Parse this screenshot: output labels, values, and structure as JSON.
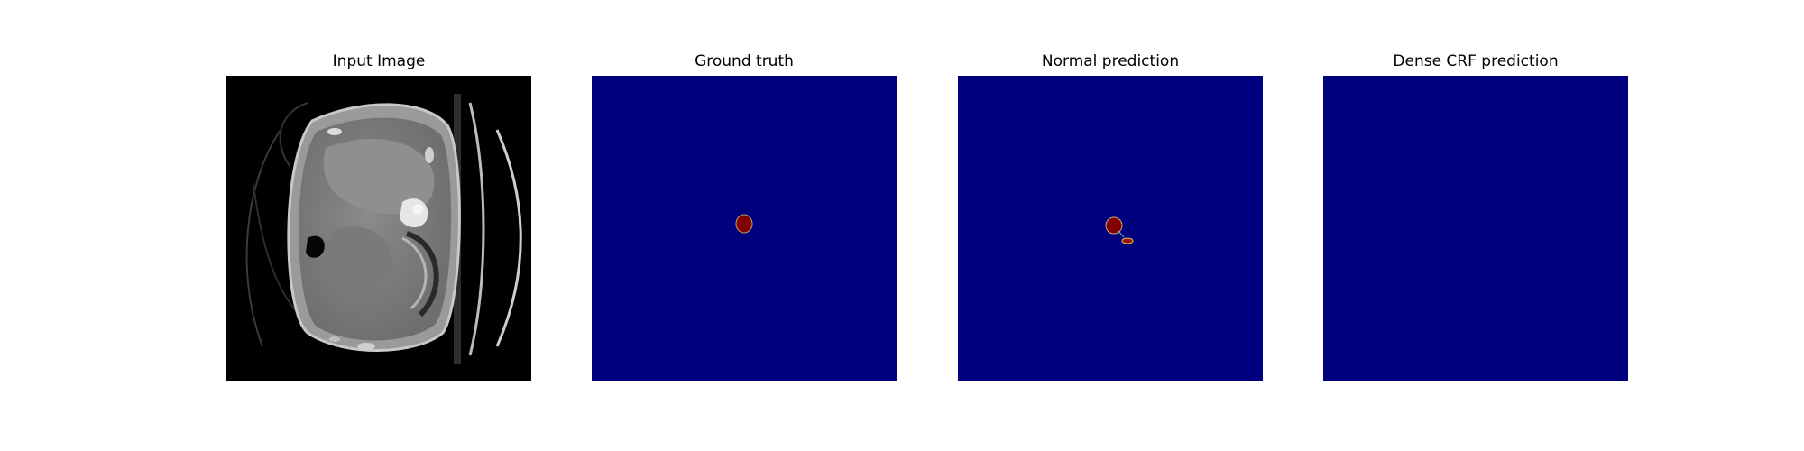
{
  "panels": [
    {
      "title": "Input Image"
    },
    {
      "title": "Ground truth"
    },
    {
      "title": "Normal prediction"
    },
    {
      "title": "Dense CRF prediction"
    }
  ],
  "colors": {
    "background": "#ffffff",
    "mask_background": "#00007f",
    "mask_foreground": "#800000",
    "ct_background": "#000000"
  }
}
